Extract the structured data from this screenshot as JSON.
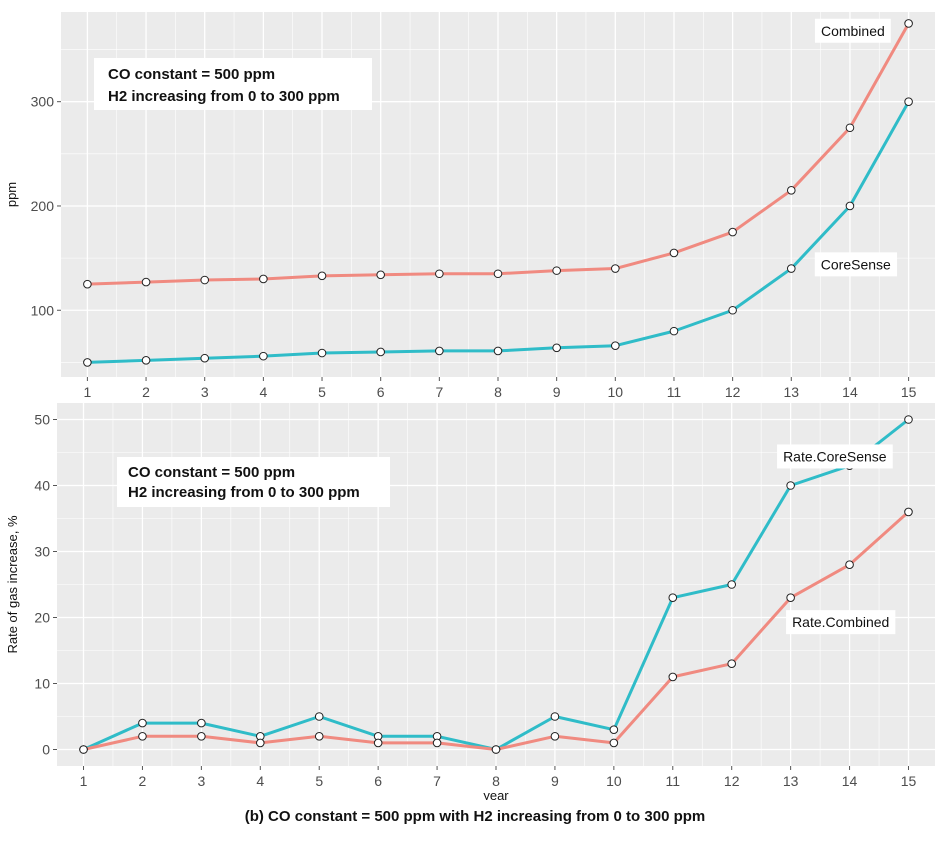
{
  "figure_caption": "(b) CO constant = 500 ppm with H2 increasing from 0 to 300 ppm",
  "colors": {
    "coral": "#F08A80",
    "teal": "#2FBCC8",
    "panel_bg": "#EBEBEB",
    "grid": "#FFFFFF",
    "point_fill": "#FFFFFF",
    "point_stroke": "#222222"
  },
  "chart_data": [
    {
      "type": "line",
      "title": "",
      "xlabel": "",
      "ylabel": "ppm",
      "x": [
        1,
        2,
        3,
        4,
        5,
        6,
        7,
        8,
        9,
        10,
        11,
        12,
        13,
        14,
        15
      ],
      "x_ticks": [
        "1",
        "2",
        "3",
        "4",
        "5",
        "6",
        "7",
        "8",
        "9",
        "10",
        "11",
        "12",
        "13",
        "14",
        "15"
      ],
      "y_ticks": [
        "100",
        "200",
        "300"
      ],
      "xlim": [
        0.55,
        15.45
      ],
      "ylim": [
        36,
        386
      ],
      "grid": true,
      "annotation_box": [
        "CO constant = 500 ppm",
        "H2 increasing from 0 to 300 ppm"
      ],
      "series": [
        {
          "name": "Combined",
          "color": "coral",
          "label_pos": [
            14.05,
            368
          ],
          "values": [
            125,
            127,
            129,
            130,
            133,
            134,
            135,
            135,
            138,
            140,
            155,
            175,
            215,
            275,
            375
          ]
        },
        {
          "name": "CoreSense",
          "color": "teal",
          "label_pos": [
            14.1,
            144
          ],
          "values": [
            50,
            52,
            54,
            56,
            59,
            60,
            61,
            61,
            64,
            66,
            80,
            100,
            140,
            200,
            300
          ]
        }
      ]
    },
    {
      "type": "line",
      "title": "",
      "xlabel": "year",
      "ylabel": "Rate of gas increase, %",
      "x": [
        1,
        2,
        3,
        4,
        5,
        6,
        7,
        8,
        9,
        10,
        11,
        12,
        13,
        14,
        15
      ],
      "x_ticks": [
        "1",
        "2",
        "3",
        "4",
        "5",
        "6",
        "7",
        "8",
        "9",
        "10",
        "11",
        "12",
        "13",
        "14",
        "15"
      ],
      "y_ticks": [
        "0",
        "10",
        "20",
        "30",
        "40",
        "50"
      ],
      "xlim": [
        0.55,
        15.45
      ],
      "ylim": [
        -2.5,
        52.5
      ],
      "grid": true,
      "annotation_box": [
        "CO constant = 500 ppm",
        "H2 increasing from 0 to 300 ppm"
      ],
      "series": [
        {
          "name": "Rate.CoreSense",
          "color": "teal",
          "label_pos": [
            13.75,
            44.4
          ],
          "values": [
            0,
            4,
            4,
            2,
            5,
            2,
            2,
            0,
            5,
            3,
            23,
            25,
            40,
            43,
            50
          ]
        },
        {
          "name": "Rate.Combined",
          "color": "coral",
          "label_pos": [
            13.85,
            19.3
          ],
          "values": [
            0,
            2,
            2,
            1,
            2,
            1,
            1,
            0,
            2,
            1,
            11,
            13,
            23,
            28,
            36
          ]
        }
      ]
    }
  ]
}
